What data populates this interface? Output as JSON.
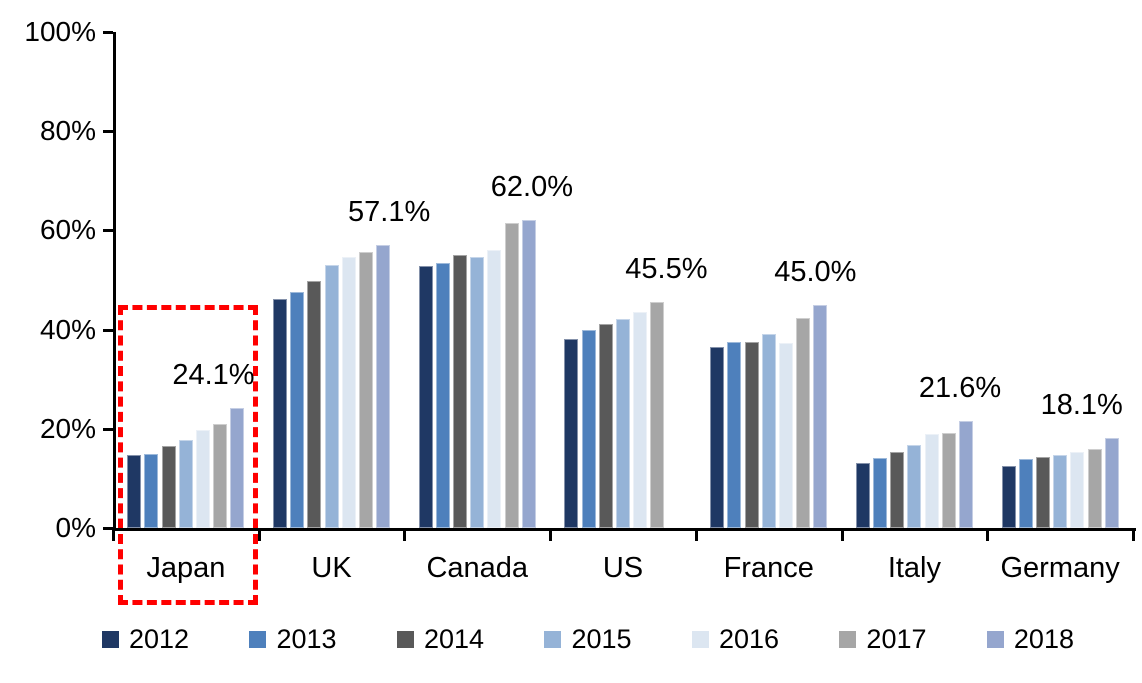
{
  "chart_data": {
    "type": "bar",
    "title": "",
    "categories": [
      "Japan",
      "UK",
      "Canada",
      "US",
      "France",
      "Italy",
      "Germany"
    ],
    "series": [
      {
        "name": "2012",
        "color": "#1F3864",
        "values": [
          14.8,
          46.2,
          52.9,
          38.2,
          36.5,
          13.2,
          12.5
        ]
      },
      {
        "name": "2013",
        "color": "#4E80BC",
        "values": [
          15.0,
          47.6,
          53.5,
          40.0,
          37.5,
          14.1,
          14.0
        ]
      },
      {
        "name": "2014",
        "color": "#595959",
        "values": [
          16.5,
          49.8,
          55.0,
          41.1,
          37.5,
          15.3,
          14.3
        ]
      },
      {
        "name": "2015",
        "color": "#95B3D7",
        "values": [
          17.8,
          53.0,
          54.6,
          42.1,
          39.1,
          16.8,
          14.7
        ]
      },
      {
        "name": "2016",
        "color": "#DCE6F1",
        "values": [
          19.7,
          54.7,
          56.1,
          43.6,
          37.2,
          19.0,
          15.3
        ]
      },
      {
        "name": "2017",
        "color": "#A6A6A6",
        "values": [
          20.9,
          55.7,
          61.5,
          45.5,
          42.4,
          19.2,
          15.9
        ]
      },
      {
        "name": "2018",
        "color": "#95A6CE",
        "values": [
          24.1,
          57.1,
          62.0,
          null,
          45.0,
          21.6,
          18.1
        ]
      }
    ],
    "data_labels": [
      "24.1%",
      "57.1%",
      "62.0%",
      "45.5%",
      "45.0%",
      "21.6%",
      "18.1%"
    ],
    "yticks": [
      "0%",
      "20%",
      "40%",
      "60%",
      "80%",
      "100%"
    ],
    "ylim": [
      0,
      100
    ],
    "grid": "off",
    "legend_position": "bottom",
    "highlight": {
      "category": "Japan",
      "color": "#FF0000",
      "style": "dashed-rectangle"
    }
  }
}
